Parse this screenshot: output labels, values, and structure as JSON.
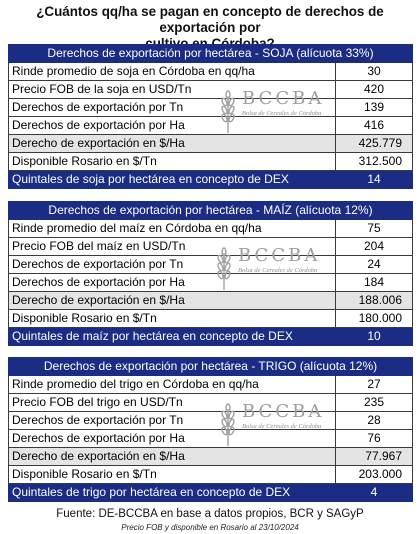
{
  "title_line1": "¿Cuántos qq/ha se pagan en concepto de derechos de exportación por",
  "title_line2": "cultivo en Córdoba?",
  "watermark": {
    "name": "BCCBA",
    "subtitle": "Bolsa de Cereales de Córdoba",
    "icon": "wheat-icon"
  },
  "soja": {
    "header": "Derechos de exportación por hectárea - SOJA (alícuota 33%)",
    "rows": [
      {
        "label": "Rinde promedio de soja en Córdoba en qq/ha",
        "value": "30"
      },
      {
        "label": "Precio FOB de la soja en USD/Tn",
        "value": "420"
      },
      {
        "label": "Derechos de exportación por Tn",
        "value": "139"
      },
      {
        "label": "Derechos de exportación por Ha",
        "value": "416"
      },
      {
        "label": "Derecho de exportación en $/Ha",
        "value": "425.779"
      },
      {
        "label": "Disponible Rosario en $/Tn",
        "value": "312.500"
      }
    ],
    "footer": {
      "label": "Quintales de soja por hectárea en concepto de DEX",
      "value": "14"
    }
  },
  "maiz": {
    "header": "Derechos de exportación por hectárea - MAÍZ (alícuota 12%)",
    "rows": [
      {
        "label": "Rinde promedio del maíz en Córdoba en qq/ha",
        "value": "75"
      },
      {
        "label": "Precio FOB del maíz en USD/Tn",
        "value": "204"
      },
      {
        "label": "Derechos de exportación por Tn",
        "value": "24"
      },
      {
        "label": "Derechos de exportación por Ha",
        "value": "184"
      },
      {
        "label": "Derecho de exportación en  $/Ha",
        "value": "188.006"
      },
      {
        "label": "Disponible Rosario en $/Tn",
        "value": "180.000"
      }
    ],
    "footer": {
      "label": "Quintales de maíz por hectárea en concepto de DEX",
      "value": "10"
    }
  },
  "trigo": {
    "header": "Derechos de exportación por hectárea - TRIGO (alícuota 12%)",
    "rows": [
      {
        "label": "Rinde promedio del trigo en Córdoba en qq/ha",
        "value": "27"
      },
      {
        "label": "Precio FOB del trigo en USD/Tn",
        "value": "235"
      },
      {
        "label": "Derechos de exportación por Tn",
        "value": "28"
      },
      {
        "label": "Derechos de exportación por Ha",
        "value": "76"
      },
      {
        "label": "Derecho de exportación en  $/Ha",
        "value": "77.967"
      },
      {
        "label": "Disponible Rosario en $/Tn",
        "value": "203.000"
      }
    ],
    "footer": {
      "label": "Quintales de trigo por hectárea en concepto de DEX",
      "value": "4"
    }
  },
  "source": "Fuente: DE-BCCBA en base a datos propios, BCR y SAGyP",
  "note": "Precio FOB y disponible en Rosario al 23/10/2024"
}
